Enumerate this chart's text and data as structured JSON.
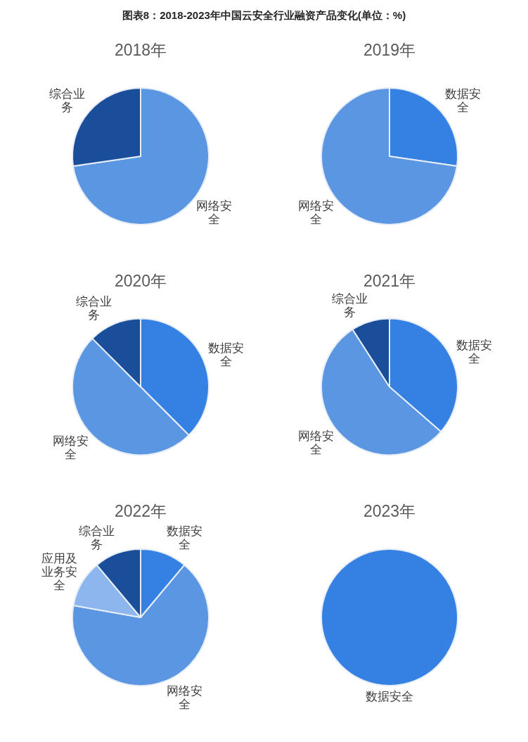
{
  "chart_data": [
    {
      "type": "pie",
      "title": "图表8：2018-2023年中国云安全行业融资产品变化(单位：%)",
      "subtitle": "2018年",
      "categories": [
        "网络安全",
        "综合业务"
      ],
      "values": [
        72.7,
        27.3
      ],
      "colors": [
        "#5b96e2",
        "#1a4e9b"
      ]
    },
    {
      "type": "pie",
      "title": "2019年",
      "categories": [
        "数据安全",
        "网络安全"
      ],
      "values": [
        27.3,
        72.7
      ],
      "colors": [
        "#3580e3",
        "#5b96e2"
      ]
    },
    {
      "type": "pie",
      "title": "2020年",
      "categories": [
        "数据安全",
        "网络安全",
        "综合业务"
      ],
      "values": [
        37.5,
        50,
        12.5
      ],
      "colors": [
        "#3580e3",
        "#5b96e2",
        "#1a4e9b"
      ]
    },
    {
      "type": "pie",
      "title": "2021年",
      "categories": [
        "数据安全",
        "网络安全",
        "综合业务"
      ],
      "values": [
        36.4,
        54.5,
        9.1
      ],
      "colors": [
        "#3580e3",
        "#5b96e2",
        "#1a4e9b"
      ]
    },
    {
      "type": "pie",
      "title": "2022年",
      "categories": [
        "数据安全",
        "网络安全",
        "应用及业务安全",
        "综合业务"
      ],
      "values": [
        11.1,
        66.7,
        11.1,
        11.1
      ],
      "colors": [
        "#3580e3",
        "#5b96e2",
        "#8eb6ee",
        "#1a4e9b"
      ]
    },
    {
      "type": "pie",
      "title": "2023年",
      "categories": [
        "数据安全"
      ],
      "values": [
        100
      ],
      "colors": [
        "#3580e3"
      ]
    }
  ]
}
